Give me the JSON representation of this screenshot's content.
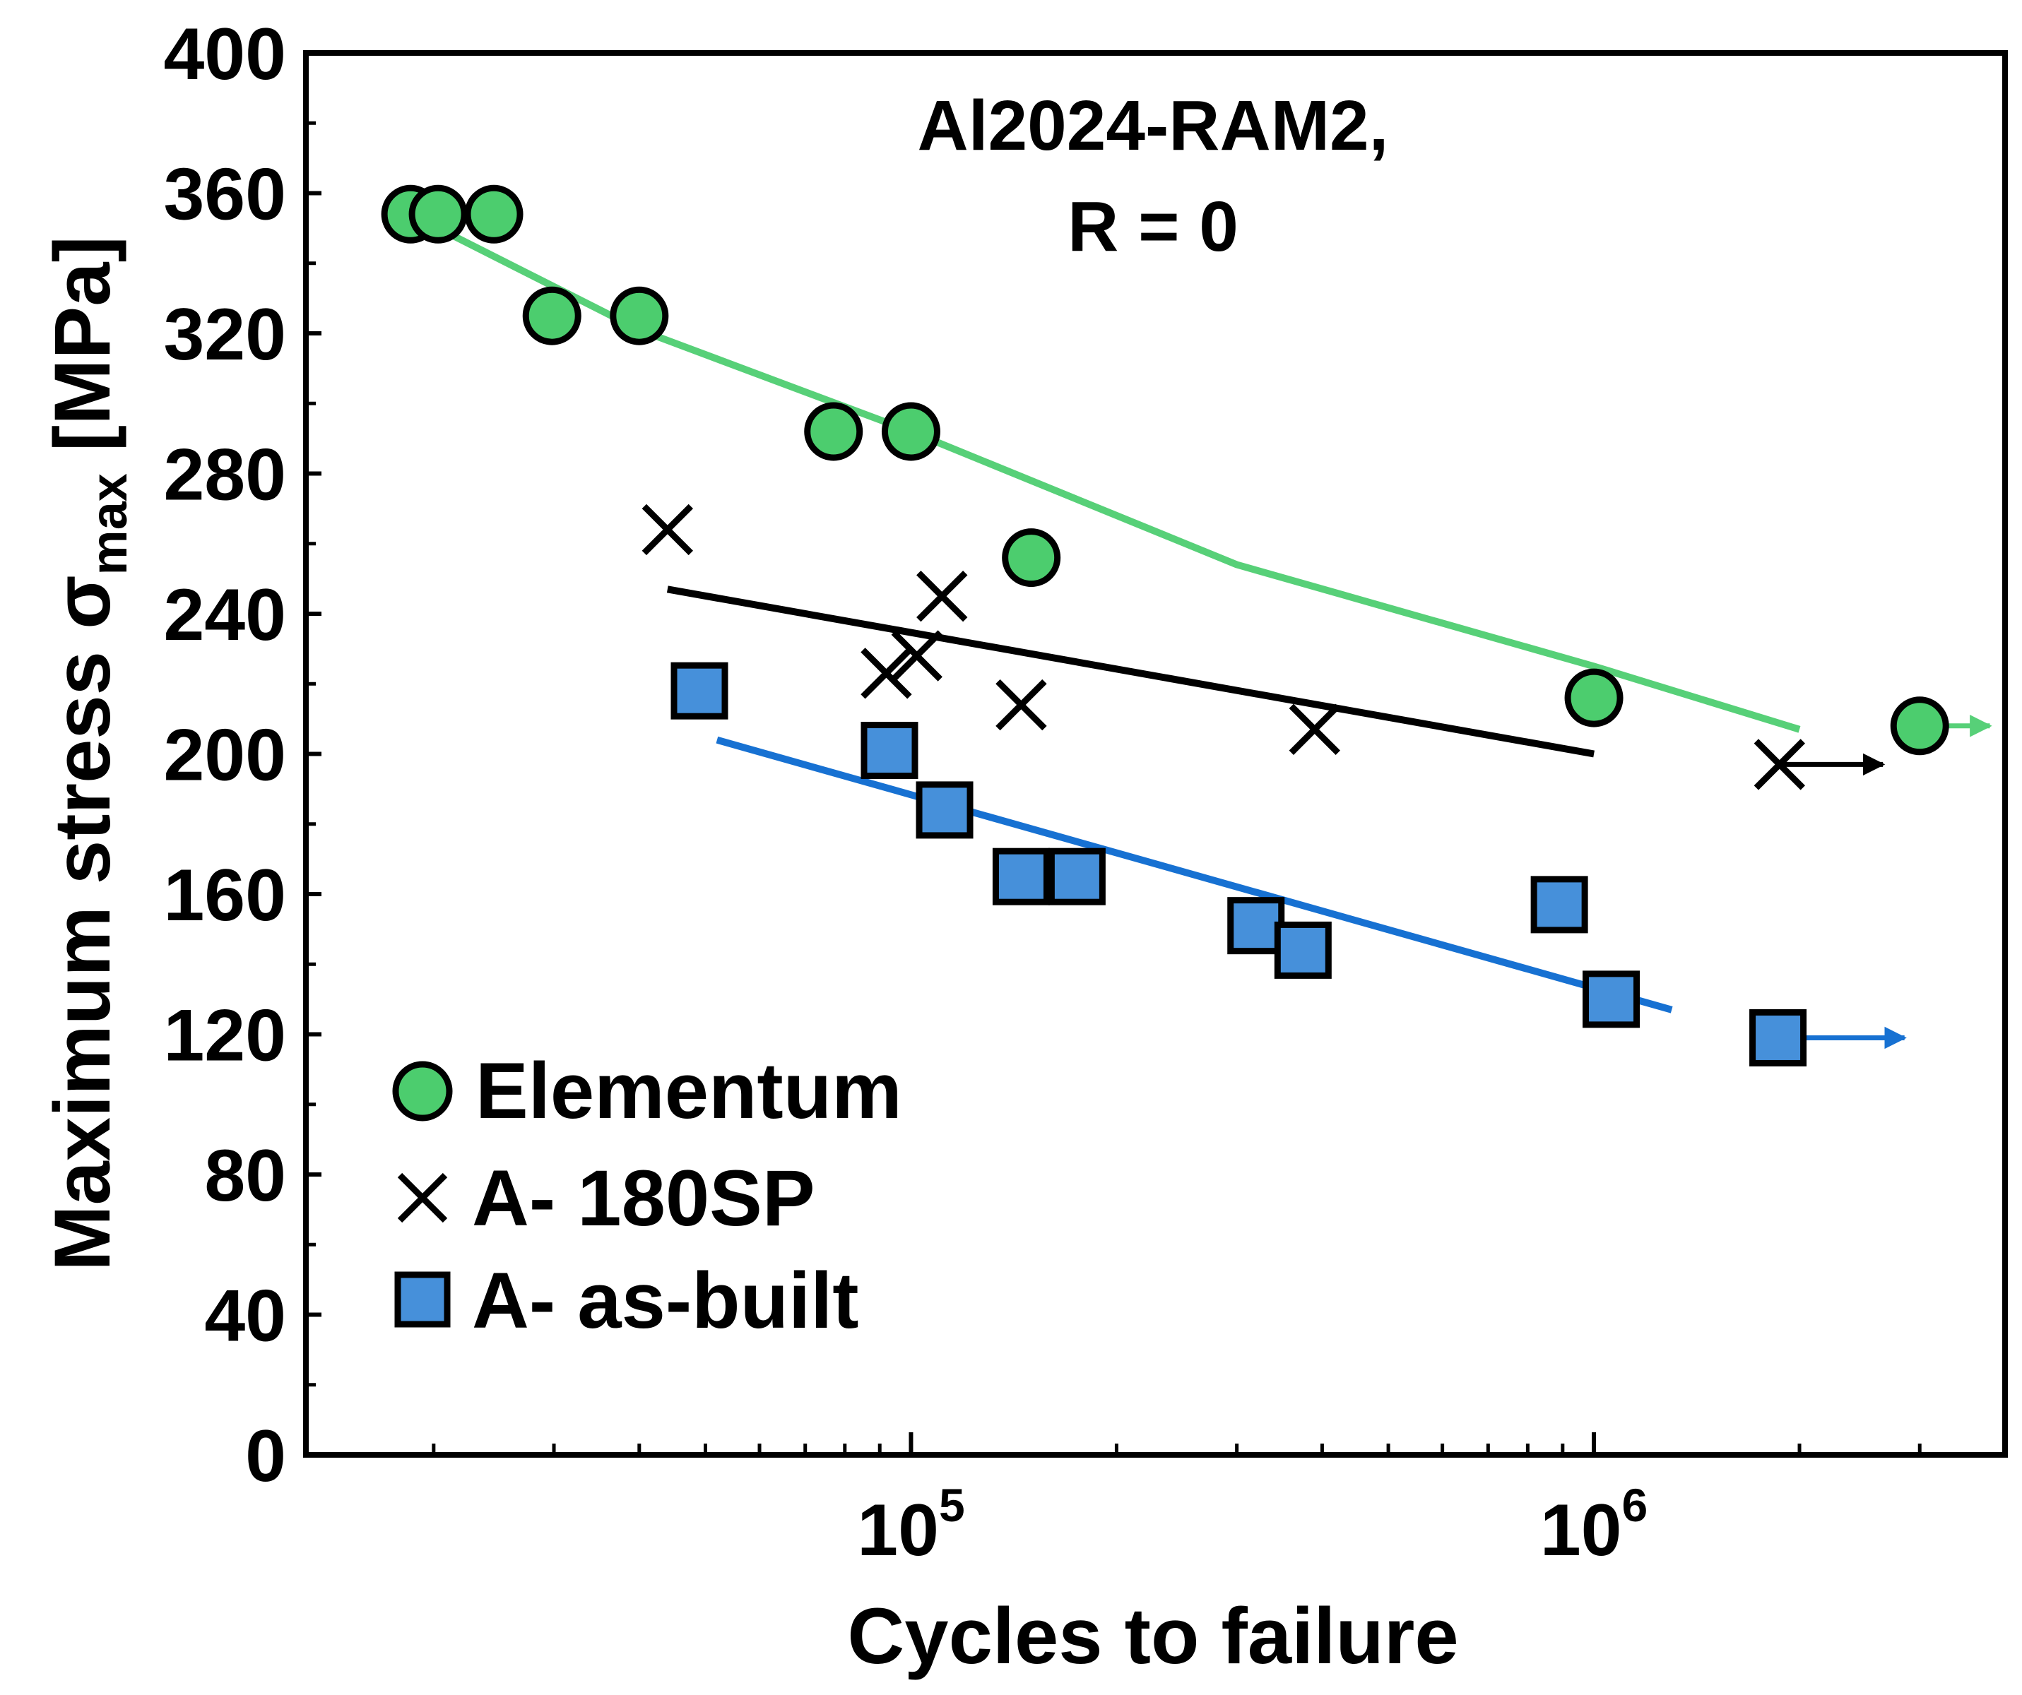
{
  "chart_data": {
    "type": "scatter",
    "title": [
      "Al2024-RAM2,",
      "R = 0"
    ],
    "xlabel": "Cycles to failure",
    "ylabel": {
      "main": "Maximum stress σ",
      "sub": "max",
      "unit": " [MPa]"
    },
    "xscale": "log",
    "xlim": [
      13000,
      4000000
    ],
    "ylim": [
      0,
      400
    ],
    "yticks": [
      0,
      40,
      80,
      120,
      160,
      200,
      240,
      280,
      320,
      360,
      400
    ],
    "xticks_major": [
      {
        "value": 100000,
        "base": "10",
        "exp": "5"
      },
      {
        "value": 1000000,
        "base": "10",
        "exp": "6"
      }
    ],
    "xticks_minor": [
      20000,
      30000,
      40000,
      50000,
      60000,
      70000,
      80000,
      90000,
      200000,
      300000,
      400000,
      500000,
      600000,
      700000,
      800000,
      900000,
      2000000,
      3000000
    ],
    "grid": false,
    "legend_position": "bottom-left",
    "colors": {
      "elementum": "#4ccd6e",
      "elementum_line": "#57d078",
      "asbuilt": "#4690da",
      "asbuilt_line": "#1771d2",
      "sp180": "#000000"
    },
    "series": [
      {
        "name": "Elementum",
        "marker": "circle",
        "points": [
          [
            18500,
            354
          ],
          [
            20300,
            354
          ],
          [
            24500,
            354
          ],
          [
            29800,
            325
          ],
          [
            40000,
            325
          ],
          [
            77000,
            292
          ],
          [
            100000,
            292
          ],
          [
            150000,
            256
          ],
          [
            1000000,
            216
          ],
          [
            3000000,
            208
          ]
        ],
        "runout": {
          "from": 3000000,
          "to": 3800000,
          "y": 208
        },
        "fit": [
          [
            18500,
            354
          ],
          [
            40000,
            321
          ],
          [
            100000,
            292
          ],
          [
            300000,
            254
          ],
          [
            1000000,
            225
          ],
          [
            2000000,
            207
          ]
        ]
      },
      {
        "name": "A- 180SP",
        "marker": "x",
        "points": [
          [
            44000,
            264
          ],
          [
            92000,
            223
          ],
          [
            102000,
            228
          ],
          [
            111000,
            245
          ],
          [
            145000,
            214
          ],
          [
            390000,
            207
          ],
          [
            1870000,
            197
          ]
        ],
        "runout": {
          "from": 1870000,
          "to": 2650000,
          "y": 197
        },
        "fit": [
          [
            44000,
            247
          ],
          [
            1000000,
            200
          ]
        ]
      },
      {
        "name": "A- as-built",
        "marker": "square",
        "points": [
          [
            49000,
            218
          ],
          [
            93000,
            201
          ],
          [
            112000,
            184
          ],
          [
            145000,
            165
          ],
          [
            175000,
            165
          ],
          [
            320000,
            151
          ],
          [
            375000,
            144
          ],
          [
            890000,
            157
          ],
          [
            1060000,
            130
          ],
          [
            1860000,
            119
          ]
        ],
        "runout": {
          "from": 1860000,
          "to": 2850000,
          "y": 119
        },
        "fit": [
          [
            52000,
            204
          ],
          [
            1300000,
            127
          ]
        ]
      }
    ]
  }
}
